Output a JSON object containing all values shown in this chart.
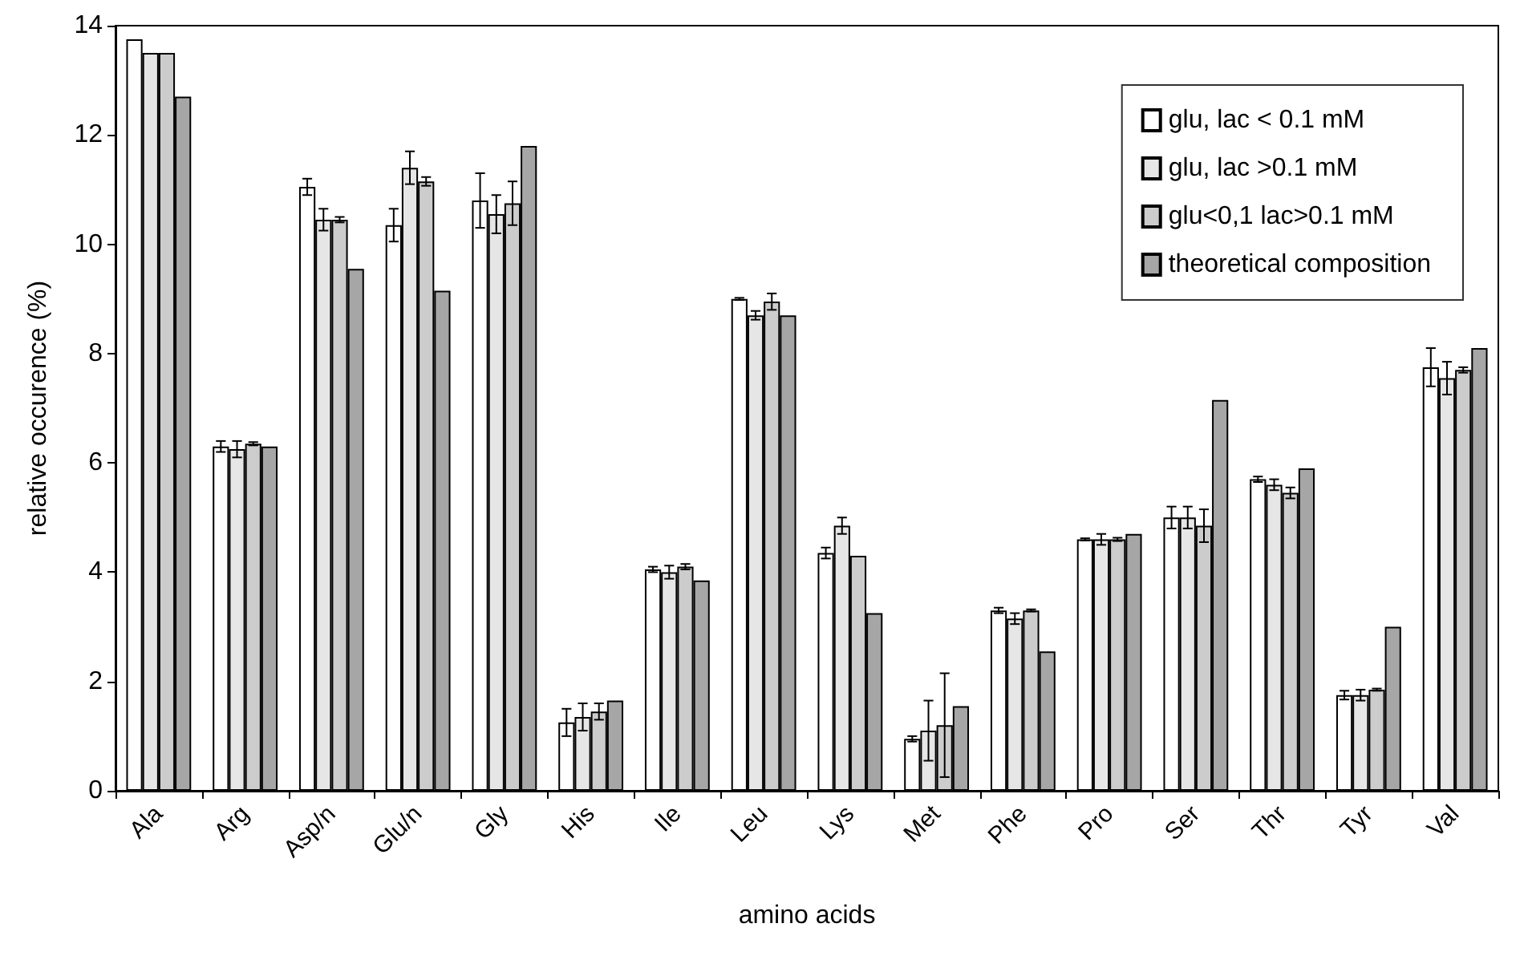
{
  "chart_data": {
    "type": "bar",
    "xlabel": "amino acids",
    "ylabel": "relative occurence (%)",
    "categories": [
      "Ala",
      "Arg",
      "Asp/n",
      "Glu/n",
      "Gly",
      "His",
      "Ile",
      "Leu",
      "Lys",
      "Met",
      "Phe",
      "Pro",
      "Ser",
      "Thr",
      "Tyr",
      "Val"
    ],
    "series": [
      {
        "name": "glu, lac < 0.1 mM",
        "color": "#ffffff",
        "values": [
          13.75,
          6.3,
          11.05,
          10.35,
          10.8,
          1.25,
          4.05,
          9.0,
          4.35,
          0.95,
          3.3,
          4.6,
          5.0,
          5.7,
          1.75,
          7.75
        ],
        "errors": [
          null,
          0.1,
          0.15,
          0.3,
          0.5,
          0.25,
          0.05,
          0.02,
          0.1,
          0.05,
          0.05,
          0.02,
          0.2,
          0.05,
          0.08,
          0.35
        ]
      },
      {
        "name": "glu, lac >0.1 mM",
        "color": "#e6e6e6",
        "values": [
          13.5,
          6.25,
          10.45,
          11.4,
          10.55,
          1.35,
          4.0,
          8.7,
          4.85,
          1.1,
          3.15,
          4.6,
          5.0,
          5.6,
          1.75,
          7.55
        ],
        "errors": [
          null,
          0.15,
          0.2,
          0.3,
          0.35,
          0.25,
          0.12,
          0.08,
          0.15,
          0.55,
          0.1,
          0.1,
          0.2,
          0.1,
          0.1,
          0.3
        ]
      },
      {
        "name": "glu<0,1 lac>0.1 mM",
        "color": "#cccccc",
        "values": [
          13.5,
          6.35,
          10.45,
          11.15,
          10.75,
          1.45,
          4.1,
          8.95,
          4.3,
          1.2,
          3.3,
          4.6,
          4.85,
          5.45,
          1.85,
          7.7
        ],
        "errors": [
          null,
          0.03,
          0.05,
          0.08,
          0.4,
          0.15,
          0.05,
          0.15,
          null,
          0.95,
          0.02,
          0.03,
          0.3,
          0.1,
          0.02,
          0.05
        ]
      },
      {
        "name": "theoretical composition",
        "color": "#a6a6a6",
        "values": [
          12.7,
          6.3,
          9.55,
          9.15,
          11.8,
          1.65,
          3.85,
          8.7,
          3.25,
          1.55,
          2.55,
          4.7,
          7.15,
          5.9,
          3.0,
          8.1
        ]
      }
    ],
    "ylim": [
      0,
      14
    ],
    "yticks": [
      0,
      2,
      4,
      6,
      8,
      10,
      12,
      14
    ],
    "grid": false,
    "legend": "top right"
  }
}
